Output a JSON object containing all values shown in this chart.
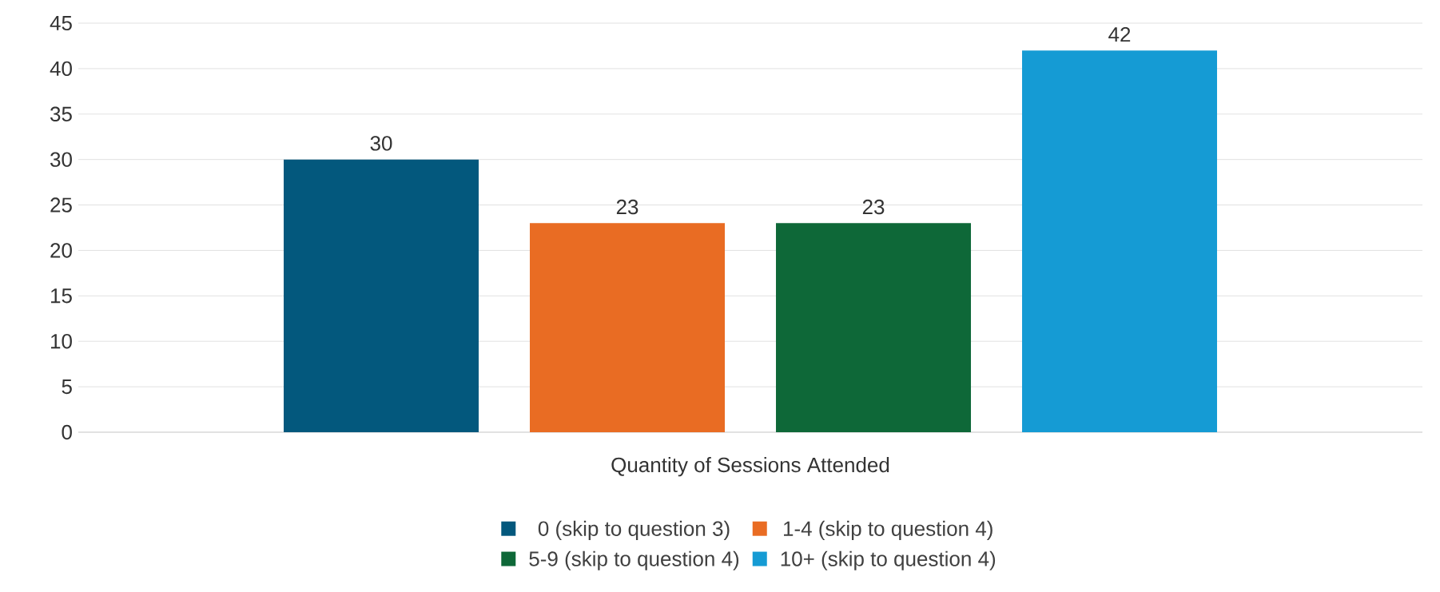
{
  "chart_data": {
    "type": "bar",
    "categories": [
      "Quantity of Sessions Attended"
    ],
    "series": [
      {
        "name": "0 (skip to question 3)",
        "color": "#03587d",
        "values": [
          30
        ]
      },
      {
        "name": "1-4 (skip to question 4)",
        "color": "#e96c23",
        "values": [
          23
        ]
      },
      {
        "name": "5-9 (skip to question 4)",
        "color": "#0e6838",
        "values": [
          23
        ]
      },
      {
        "name": "10+ (skip to question 4)",
        "color": "#159bd4",
        "values": [
          42
        ]
      }
    ],
    "ylim": [
      0,
      45
    ],
    "yticks": [
      0,
      5,
      10,
      15,
      20,
      25,
      30,
      35,
      40,
      45
    ],
    "grid": "y",
    "legend": "bottom",
    "data_labels": true
  }
}
